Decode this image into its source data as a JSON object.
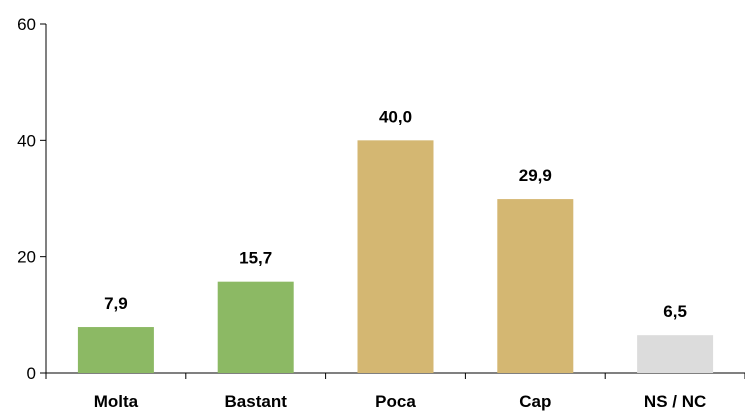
{
  "chart_data": {
    "type": "bar",
    "categories": [
      "Molta",
      "Bastant",
      "Poca",
      "Cap",
      "NS / NC"
    ],
    "values": [
      7.9,
      15.7,
      40.0,
      29.9,
      6.5
    ],
    "data_labels": [
      "7,9",
      "15,7",
      "40,0",
      "29,9",
      "6,5"
    ],
    "colors": [
      "#8cb964",
      "#8cb964",
      "#d4b772",
      "#d4b772",
      "#dcdcdc"
    ],
    "ylim": [
      0,
      60
    ],
    "yticks": [
      0,
      20,
      40,
      60
    ],
    "ytick_labels": [
      "0",
      "20",
      "40",
      "60"
    ],
    "grid": false,
    "legend": "none",
    "title": "",
    "xlabel": "",
    "ylabel": ""
  }
}
